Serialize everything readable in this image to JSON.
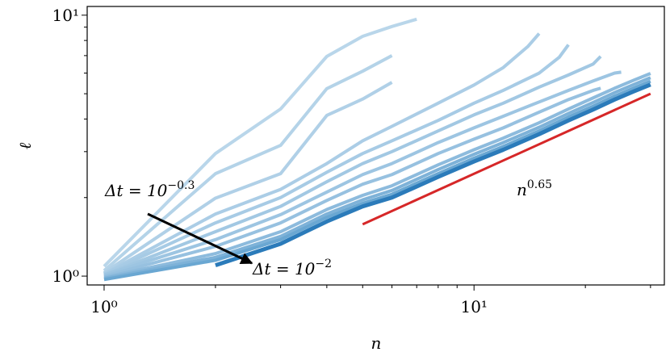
{
  "chart_data": {
    "type": "line",
    "xscale": "log",
    "yscale": "log",
    "xlabel": "n",
    "ylabel": "ℓ",
    "xlim": [
      0.9,
      32.7
    ],
    "ylim": [
      0.925,
      10.8
    ],
    "xticks": [
      {
        "value": 1,
        "label": "10⁰"
      },
      {
        "value": 10,
        "label": "10¹"
      }
    ],
    "yticks": [
      {
        "value": 1,
        "label": "10⁰"
      },
      {
        "value": 10,
        "label": "10¹"
      }
    ],
    "xminorticks": [
      2,
      3,
      4,
      5,
      6,
      7,
      8,
      9,
      20,
      30
    ],
    "yminorticks": [
      2,
      3,
      4,
      5,
      6,
      7,
      8,
      9
    ],
    "series": [
      {
        "color": "#b9d6ea",
        "x": [
          1,
          2,
          3,
          4,
          5,
          6,
          7
        ],
        "values": [
          1.09,
          2.95,
          4.37,
          6.95,
          8.3,
          9.05,
          9.65
        ]
      },
      {
        "color": "#b4d3e8",
        "x": [
          1,
          2,
          3,
          4,
          5,
          6
        ],
        "values": [
          1.05,
          2.47,
          3.17,
          5.23,
          6.1,
          7.0
        ]
      },
      {
        "color": "#b0d0e7",
        "x": [
          1,
          2,
          3,
          4,
          5,
          6
        ],
        "values": [
          1.03,
          1.99,
          2.47,
          4.13,
          4.77,
          5.53
        ]
      },
      {
        "color": "#abcde6",
        "x": [
          1,
          2,
          3,
          4,
          5,
          6,
          8,
          10,
          12,
          14,
          15
        ],
        "values": [
          1.02,
          1.73,
          2.15,
          2.7,
          3.3,
          3.75,
          4.6,
          5.4,
          6.3,
          7.6,
          8.5
        ]
      },
      {
        "color": "#a7cbe5",
        "x": [
          1,
          2,
          3,
          4,
          5,
          6,
          8,
          10,
          12,
          15,
          17,
          18
        ],
        "values": [
          1.02,
          1.6,
          2.0,
          2.5,
          2.95,
          3.3,
          3.95,
          4.6,
          5.15,
          6.0,
          6.9,
          7.7
        ]
      },
      {
        "color": "#a2c8e3",
        "x": [
          1,
          2,
          3,
          4,
          5,
          6,
          8,
          10,
          12,
          15,
          18,
          21,
          22
        ],
        "values": [
          1.01,
          1.48,
          1.85,
          2.3,
          2.7,
          3.0,
          3.6,
          4.15,
          4.6,
          5.3,
          5.9,
          6.5,
          6.95
        ]
      },
      {
        "color": "#9dc5e2",
        "x": [
          1,
          2,
          3,
          4,
          5,
          6,
          8,
          10,
          12,
          15,
          18,
          21,
          24,
          25
        ],
        "values": [
          1.01,
          1.38,
          1.72,
          2.1,
          2.45,
          2.7,
          3.25,
          3.7,
          4.1,
          4.65,
          5.15,
          5.6,
          6.0,
          6.05
        ]
      },
      {
        "color": "#97c1e0",
        "x": [
          1,
          2,
          3,
          4,
          5,
          6,
          8,
          10,
          12,
          15,
          18,
          21,
          22
        ],
        "values": [
          1.0,
          1.3,
          1.6,
          1.95,
          2.25,
          2.45,
          2.95,
          3.35,
          3.7,
          4.25,
          4.75,
          5.15,
          5.25
        ]
      },
      {
        "color": "#8dbbdd",
        "x": [
          1,
          2,
          3,
          4,
          5,
          6,
          8,
          10,
          12,
          15,
          18,
          21,
          24,
          27,
          30
        ],
        "values": [
          0.99,
          1.22,
          1.48,
          1.8,
          2.04,
          2.22,
          2.67,
          3.05,
          3.38,
          3.87,
          4.37,
          4.82,
          5.25,
          5.63,
          5.98
        ]
      },
      {
        "color": "#7eb2d8",
        "x": [
          1,
          2,
          3,
          4,
          5,
          6,
          8,
          10,
          12,
          15,
          18,
          21,
          24,
          27,
          30
        ],
        "values": [
          0.98,
          1.18,
          1.42,
          1.73,
          1.96,
          2.13,
          2.56,
          2.93,
          3.25,
          3.72,
          4.2,
          4.63,
          5.05,
          5.42,
          5.76
        ]
      },
      {
        "color": "#6aa7d2",
        "x": [
          1,
          2,
          3,
          4,
          5,
          6,
          8,
          10,
          12,
          15,
          18,
          21,
          24,
          27,
          30
        ],
        "values": [
          0.97,
          1.15,
          1.38,
          1.68,
          1.9,
          2.06,
          2.47,
          2.83,
          3.14,
          3.6,
          4.07,
          4.48,
          4.89,
          5.25,
          5.58
        ]
      },
      {
        "color": "#2b7bba",
        "x": [
          2,
          3,
          4,
          5,
          6,
          8,
          10,
          12,
          15,
          18,
          21,
          24,
          27,
          30
        ],
        "values": [
          1.1,
          1.33,
          1.62,
          1.85,
          2.0,
          2.4,
          2.75,
          3.05,
          3.5,
          3.95,
          4.35,
          4.75,
          5.1,
          5.42
        ]
      }
    ],
    "reference": {
      "color": "#d62728",
      "x": [
        5,
        30
      ],
      "values": [
        1.58,
        5.0
      ],
      "label": {
        "text": "n",
        "sup": "0.65"
      }
    },
    "annotations": [
      {
        "text": "Δt = 10",
        "sup": "−0.3"
      },
      {
        "text": "Δt = 10",
        "sup": "−2"
      }
    ]
  }
}
